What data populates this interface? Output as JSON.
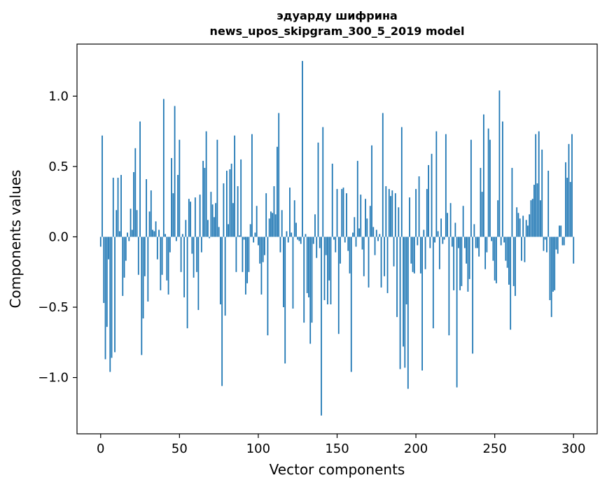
{
  "chart_data": {
    "type": "bar",
    "title_lines": [
      "эдуарду шифрина",
      "news_upos_skipgram_300_5_2019 model"
    ],
    "xlabel": "Vector components",
    "ylabel": "Components values",
    "xlim": [
      -15,
      315
    ],
    "ylim": [
      -1.4,
      1.37
    ],
    "xticks": [
      0,
      50,
      100,
      150,
      200,
      250,
      300
    ],
    "xtick_labels": [
      "0",
      "50",
      "100",
      "150",
      "200",
      "250",
      "300"
    ],
    "yticks": [
      -1.0,
      -0.5,
      0.0,
      0.5,
      1.0
    ],
    "ytick_labels": [
      "−1.0",
      "−0.5",
      "0.0",
      "0.5",
      "1.0"
    ],
    "grid": false,
    "bar_color": "#1f77b4",
    "values": [
      -0.07,
      0.72,
      -0.47,
      -0.87,
      -0.64,
      -0.16,
      -0.96,
      -0.86,
      0.42,
      -0.82,
      0.19,
      0.42,
      0.04,
      0.44,
      -0.42,
      -0.29,
      -0.17,
      0.03,
      -0.03,
      0.2,
      0.05,
      0.46,
      0.63,
      0.19,
      -0.27,
      0.82,
      -0.84,
      -0.58,
      -0.28,
      0.41,
      -0.46,
      0.18,
      0.33,
      0.05,
      0.04,
      0.11,
      -0.16,
      0.05,
      -0.38,
      -0.27,
      0.98,
      0.02,
      -0.31,
      -0.41,
      -0.11,
      0.56,
      0.31,
      0.93,
      -0.03,
      0.44,
      0.69,
      -0.25,
      0.02,
      -0.43,
      0.12,
      -0.65,
      0.27,
      0.25,
      -0.12,
      -0.29,
      0.28,
      -0.25,
      -0.52,
      0.3,
      -0.11,
      0.54,
      0.49,
      0.75,
      0.12,
      -0.01,
      0.32,
      0.23,
      0.14,
      0.24,
      0.69,
      0.07,
      -0.48,
      -1.06,
      0.38,
      -0.56,
      0.47,
      0.09,
      0.48,
      0.52,
      0.24,
      0.72,
      -0.25,
      0.36,
      0.01,
      0.55,
      -0.25,
      -0.02,
      -0.41,
      -0.33,
      -0.25,
      0.09,
      0.73,
      -0.04,
      0.03,
      0.22,
      -0.06,
      -0.19,
      -0.41,
      -0.18,
      -0.13,
      0.31,
      -0.7,
      0.13,
      0.18,
      0.17,
      0.36,
      0.16,
      0.64,
      0.88,
      -0.11,
      0.19,
      -0.5,
      -0.9,
      0.04,
      -0.04,
      0.35,
      0.03,
      -0.51,
      0.26,
      0.1,
      -0.02,
      -0.03,
      -0.05,
      1.25,
      -0.61,
      0.02,
      -0.4,
      -0.43,
      -0.76,
      -0.61,
      -0.05,
      0.16,
      -0.15,
      0.67,
      -0.08,
      -1.27,
      0.78,
      -0.45,
      -0.13,
      -0.48,
      -0.31,
      -0.48,
      0.52,
      -0.02,
      -0.11,
      0.34,
      -0.69,
      -0.19,
      0.34,
      0.35,
      -0.04,
      0.31,
      -0.1,
      -0.26,
      -0.96,
      0.03,
      0.14,
      -0.07,
      0.54,
      0.06,
      0.3,
      -0.09,
      -0.28,
      0.27,
      0.13,
      -0.36,
      0.22,
      0.65,
      0.07,
      -0.13,
      0.05,
      -0.03,
      0.02,
      -0.36,
      0.88,
      -0.28,
      0.36,
      -0.4,
      0.34,
      0.29,
      0.33,
      -0.21,
      0.31,
      -0.57,
      0.21,
      -0.94,
      0.78,
      -0.78,
      -0.93,
      -0.48,
      -1.08,
      0.28,
      -0.19,
      -0.25,
      -0.26,
      0.34,
      -0.06,
      0.43,
      -0.26,
      -0.95,
      0.05,
      -0.23,
      0.34,
      0.51,
      -0.08,
      0.59,
      -0.65,
      -0.04,
      0.75,
      0.04,
      -0.23,
      0.13,
      -0.05,
      -0.02,
      0.73,
      0.17,
      -0.7,
      0.24,
      -0.07,
      -0.38,
      0.1,
      -1.07,
      -0.08,
      -0.38,
      -0.35,
      0.22,
      -0.08,
      -0.19,
      -0.39,
      -0.3,
      0.69,
      -0.83,
      0.09,
      -0.08,
      -0.08,
      -0.14,
      0.49,
      0.32,
      0.87,
      -0.23,
      -0.11,
      0.77,
      0.69,
      -0.03,
      -0.17,
      -0.31,
      -0.33,
      0.26,
      1.04,
      -0.06,
      0.82,
      -0.04,
      -0.17,
      -0.22,
      -0.34,
      -0.66,
      0.49,
      -0.35,
      -0.42,
      0.21,
      0.17,
      0.13,
      -0.17,
      0.15,
      -0.18,
      0.12,
      0.08,
      0.16,
      0.26,
      0.27,
      0.37,
      0.73,
      0.38,
      0.75,
      0.26,
      0.62,
      -0.1,
      -0.02,
      -0.11,
      0.47,
      -0.45,
      -0.57,
      -0.39,
      -0.38,
      -0.09,
      -0.12,
      0.08,
      0.08,
      -0.06,
      -0.06,
      0.53,
      0.42,
      0.66,
      0.39,
      0.73,
      -0.19
    ]
  }
}
